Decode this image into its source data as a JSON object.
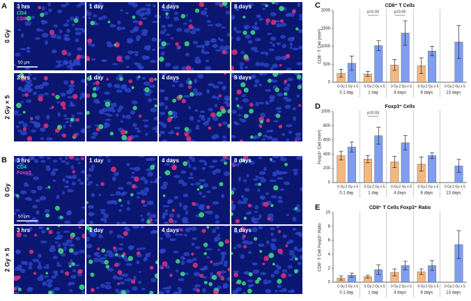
{
  "microscopy": [
    {
      "panel": "A",
      "rows": [
        "0 Gy",
        "2 Gy × 5"
      ],
      "timepoints": [
        "3 hrs",
        "1 day",
        "4 days",
        "8 days"
      ],
      "stains": [
        "CD4",
        "CD8"
      ],
      "scale_bar": "50 μm"
    },
    {
      "panel": "B",
      "rows": [
        "0 Gy",
        "2 Gy × 5"
      ],
      "timepoints": [
        "3 hrs",
        "1 day",
        "4 days",
        "8 days"
      ],
      "stains": [
        "CD4",
        "Foxp3"
      ],
      "scale_bar": "50 μm"
    }
  ],
  "chart_data": [
    {
      "type": "bar",
      "panel": "C",
      "title": "CD8⁺ T Cells",
      "y_label": "CD8⁺ T Cell (mm²)",
      "categories": [
        "0.1 day",
        "1 day",
        "4 days",
        "8 days",
        "13 days"
      ],
      "series": [
        {
          "name": "0 Gy",
          "color": "#f4b77e",
          "values": [
            250,
            230,
            480,
            460,
            null
          ],
          "errors": [
            110,
            70,
            150,
            220,
            null
          ]
        },
        {
          "name": "2 Gy x 5",
          "color": "#7f9ef0",
          "values": [
            530,
            1020,
            1370,
            870,
            1120
          ],
          "errors": [
            200,
            140,
            340,
            130,
            460
          ]
        }
      ],
      "ylim": [
        0,
        2000
      ],
      "yticks": [
        0,
        500,
        1000,
        1500,
        2000
      ],
      "annotations": [
        {
          "text": "p=0.03",
          "category": "1 day"
        },
        {
          "text": "p=0.05",
          "category": "4 days"
        }
      ]
    },
    {
      "type": "bar",
      "panel": "D",
      "title": "Foxp3⁺ Cells",
      "y_label": "Foxp3⁺ Cell (mm²)",
      "categories": [
        "0.1 day",
        "1 day",
        "4 days",
        "8 days",
        "13 days"
      ],
      "series": [
        {
          "name": "0 Gy",
          "color": "#f4b77e",
          "values": [
            380,
            330,
            290,
            260,
            null
          ],
          "errors": [
            60,
            50,
            80,
            100,
            null
          ]
        },
        {
          "name": "2 Gy x 5",
          "color": "#7f9ef0",
          "values": [
            500,
            660,
            560,
            380,
            235
          ],
          "errors": [
            70,
            120,
            100,
            40,
            90
          ]
        }
      ],
      "ylim": [
        0,
        1000
      ],
      "yticks": [
        0,
        200,
        400,
        600,
        800,
        1000
      ],
      "annotations": [
        {
          "text": "p=0.03",
          "category": "1 day"
        }
      ]
    },
    {
      "type": "bar",
      "panel": "E",
      "title": "CD8⁺ T Cells Foxp3⁺ Ratio",
      "y_label": "CD8⁺ T Cell Foxp3⁺ Ratio",
      "categories": [
        "0.1 day",
        "1 day",
        "4 days",
        "8 days",
        "13 days"
      ],
      "series": [
        {
          "name": "0 Gy",
          "color": "#f4b77e",
          "values": [
            0.6,
            0.8,
            1.4,
            1.5,
            null
          ],
          "errors": [
            0.3,
            0.2,
            0.5,
            0.4,
            null
          ]
        },
        {
          "name": "2 Gy x 5",
          "color": "#7f9ef0",
          "values": [
            1.0,
            1.8,
            2.4,
            2.4,
            5.4
          ],
          "errors": [
            0.3,
            0.7,
            0.6,
            0.7,
            2.0
          ]
        }
      ],
      "ylim": [
        0,
        10
      ],
      "yticks": [
        0,
        2,
        4,
        6,
        8,
        10
      ],
      "annotations": []
    }
  ]
}
